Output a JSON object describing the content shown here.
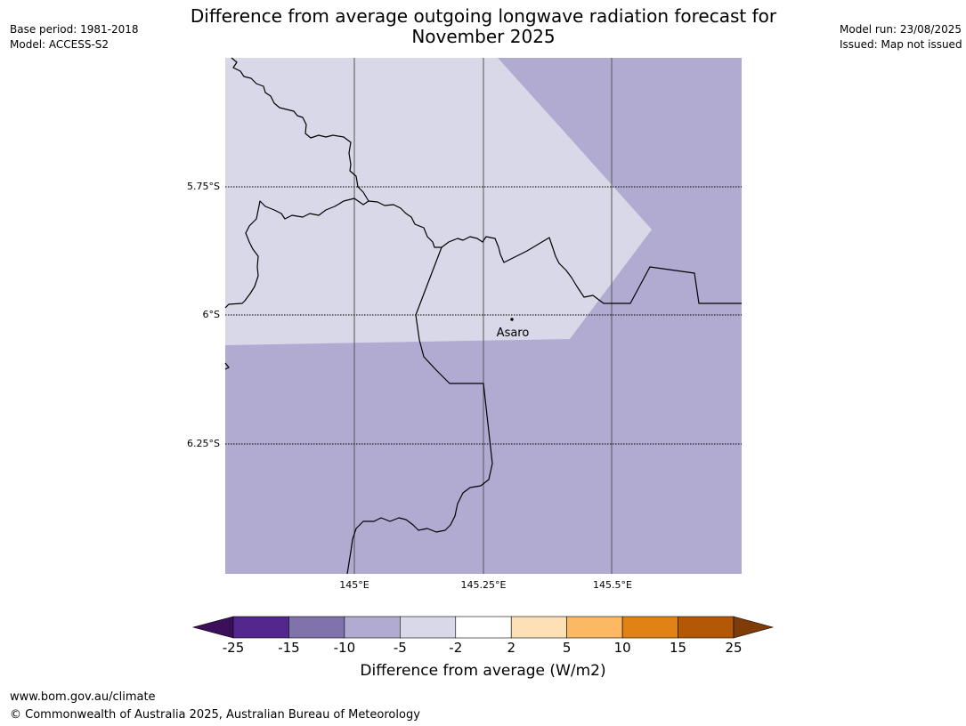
{
  "title_line1": "Difference from average outgoing longwave radiation forecast for",
  "title_line2": "November 2025",
  "meta_left": {
    "base_period": "Base period: 1981-2018",
    "model": "Model: ACCESS-S2"
  },
  "meta_right": {
    "model_run": "Model run: 23/08/2025",
    "issued": "Issued: Map not issued"
  },
  "map": {
    "lat_labels": [
      "5.75°S",
      "6°S",
      "6.25°S"
    ],
    "lon_labels": [
      "145°E",
      "145.25°E",
      "145.5°E"
    ],
    "place_label": "Asaro",
    "colors": {
      "minus5_to_minus2": "#d8d8e9",
      "minus10_to_minus5": "#b1abd1"
    }
  },
  "colorbar": {
    "ticks": [
      "-25",
      "-15",
      "-10",
      "-5",
      "-2",
      "2",
      "5",
      "10",
      "15",
      "25"
    ],
    "colors": [
      "#3b0f5a",
      "#54278f",
      "#8073ac",
      "#b1abd1",
      "#d8d8e9",
      "#ffffff",
      "#fee0b6",
      "#fdb863",
      "#e08214",
      "#b35806",
      "#7f3b08"
    ],
    "label": "Difference from average (W/m2)"
  },
  "footer": {
    "url": "www.bom.gov.au/climate",
    "copyright": "© Commonwealth of Australia 2025, Australian Bureau of Meteorology"
  }
}
